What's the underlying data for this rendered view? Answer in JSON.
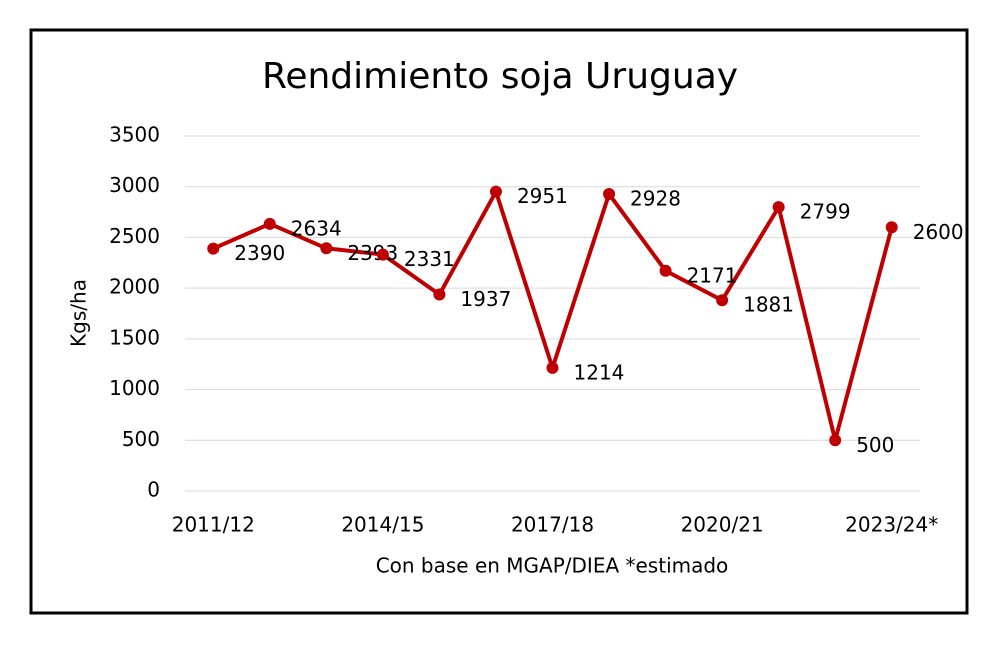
{
  "chart_data": {
    "type": "line",
    "title": "Rendimiento soja Uruguay",
    "x_label": "Con base en MGAP/DIEA *estimado",
    "y_label": "Kgs/ha",
    "categories": [
      "2011/12",
      null,
      null,
      "2014/15",
      null,
      null,
      "2017/18",
      null,
      null,
      "2020/21",
      null,
      null,
      "2023/24*"
    ],
    "values": [
      2390,
      2634,
      2393,
      2331,
      1937,
      2951,
      1214,
      2928,
      2171,
      1881,
      2799,
      500,
      2600
    ],
    "color": "#c00000",
    "ylim": [
      0,
      3500
    ],
    "yticks": [
      0,
      500,
      1000,
      1500,
      2000,
      2500,
      3000,
      3500
    ],
    "grid": true
  }
}
